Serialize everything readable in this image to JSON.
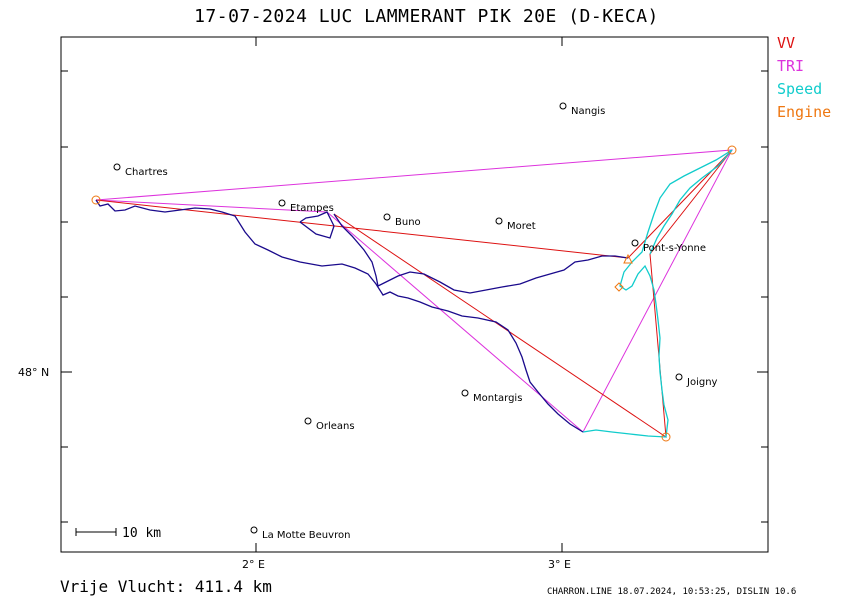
{
  "title": "17-07-2024   LUC LAMMERANT   PIK 20E (D-KECA)",
  "legend": [
    {
      "label": "VV",
      "color": "#dd1111"
    },
    {
      "label": "TRI",
      "color": "#dd33dd"
    },
    {
      "label": "Speed",
      "color": "#11cccc"
    },
    {
      "label": "Engine",
      "color": "#ee7711"
    }
  ],
  "axes": {
    "x_labels": [
      "2° E",
      "3° E"
    ],
    "y_labels": [
      "48° N"
    ]
  },
  "towns": [
    {
      "name": "Chartres"
    },
    {
      "name": "Etampes"
    },
    {
      "name": "Buno"
    },
    {
      "name": "Moret"
    },
    {
      "name": "Nangis"
    },
    {
      "name": "Pont-s-Yonne"
    },
    {
      "name": "Joigny"
    },
    {
      "name": "Montargis"
    },
    {
      "name": "Orleans"
    },
    {
      "name": "La Motte Beuvron"
    }
  ],
  "scale": {
    "label": "10  km"
  },
  "footer": {
    "distance": "Vrije Vlucht:  411.4 km",
    "info": "CHARRON.LINE 18.07.2024, 10:53:25, DISLIN 10.6"
  },
  "colors": {
    "track": "#1a0a8c",
    "vv": "#dd1111",
    "tri": "#dd33dd",
    "speed": "#11cccc",
    "engine": "#ee7711"
  }
}
